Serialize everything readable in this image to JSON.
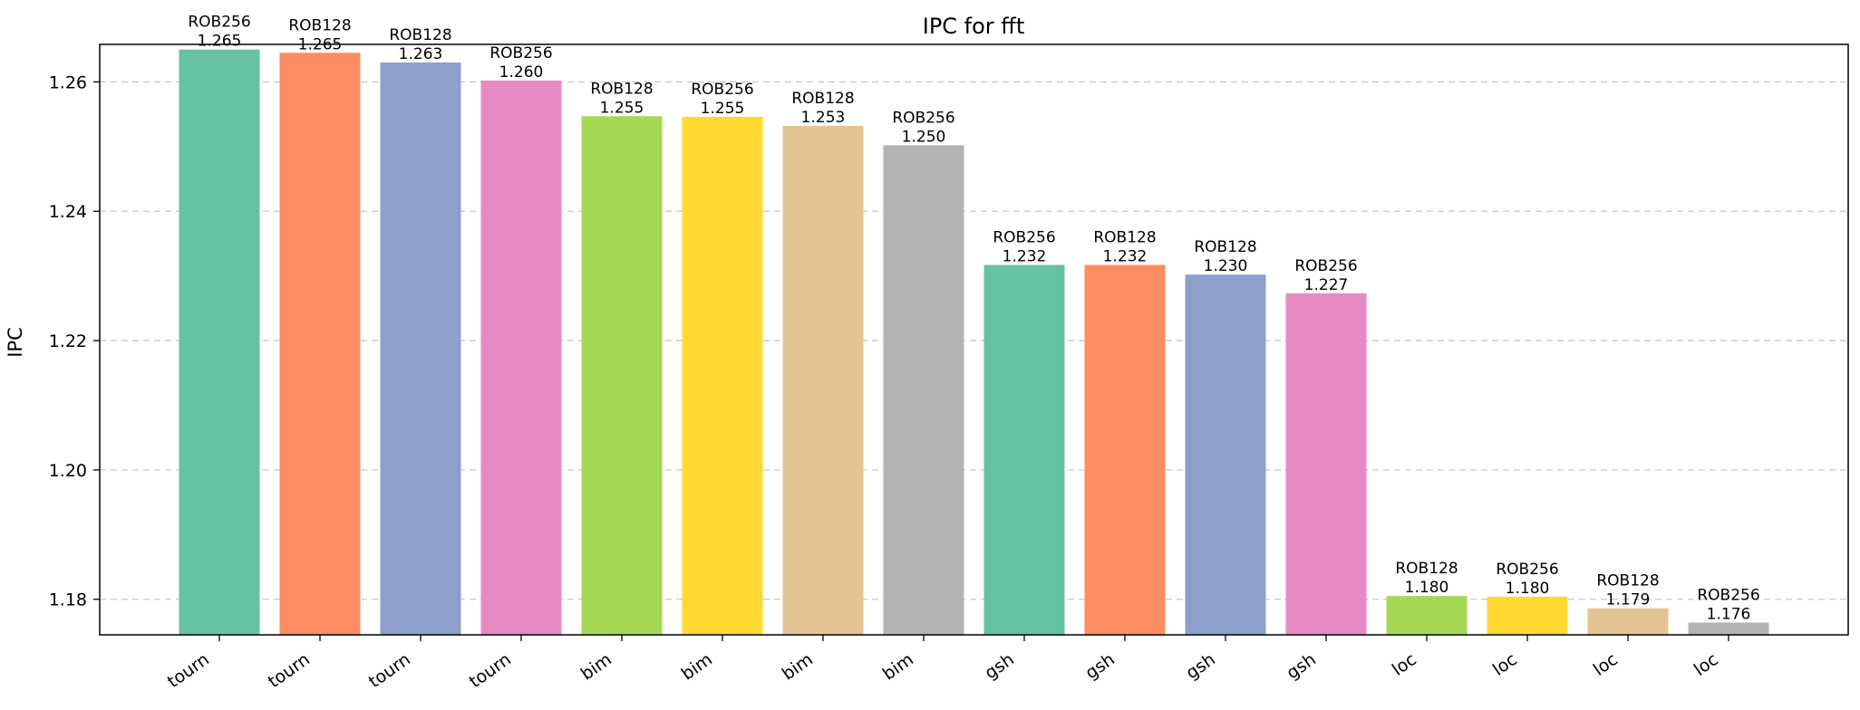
{
  "chart_data": {
    "type": "bar",
    "title": "IPC for fft",
    "xlabel": "",
    "ylabel": "IPC",
    "ylim": [
      1.1745,
      1.2658
    ],
    "yticks": [
      1.18,
      1.2,
      1.22,
      1.24,
      1.26
    ],
    "ytick_labels": [
      "1.18",
      "1.20",
      "1.22",
      "1.24",
      "1.26"
    ],
    "grid": {
      "y": true,
      "x": false
    },
    "categories": [
      "tourn",
      "tourn",
      "tourn",
      "tourn",
      "bim",
      "bim",
      "bim",
      "bim",
      "gsh",
      "gsh",
      "gsh",
      "gsh",
      "loc",
      "loc",
      "loc",
      "loc"
    ],
    "values": [
      1.265,
      1.2645,
      1.263,
      1.2602,
      1.2547,
      1.2546,
      1.2532,
      1.2502,
      1.2317,
      1.2317,
      1.2302,
      1.2273,
      1.1805,
      1.1804,
      1.1786,
      1.1764
    ],
    "value_labels": [
      "1.265",
      "1.265",
      "1.263",
      "1.260",
      "1.255",
      "1.255",
      "1.253",
      "1.250",
      "1.232",
      "1.232",
      "1.230",
      "1.227",
      "1.180",
      "1.180",
      "1.179",
      "1.176"
    ],
    "config_labels": [
      "ROB256",
      "ROB128",
      "ROB128",
      "ROB256",
      "ROB128",
      "ROB256",
      "ROB128",
      "ROB256",
      "ROB256",
      "ROB128",
      "ROB128",
      "ROB256",
      "ROB128",
      "ROB256",
      "ROB128",
      "ROB256"
    ],
    "colors": [
      "#66c2a5",
      "#fc8d62",
      "#8da0cb",
      "#e78ac3",
      "#a6d854",
      "#ffd92f",
      "#e5c494",
      "#b3b3b3",
      "#66c2a5",
      "#fc8d62",
      "#8da0cb",
      "#e78ac3",
      "#a6d854",
      "#ffd92f",
      "#e5c494",
      "#b3b3b3"
    ]
  }
}
